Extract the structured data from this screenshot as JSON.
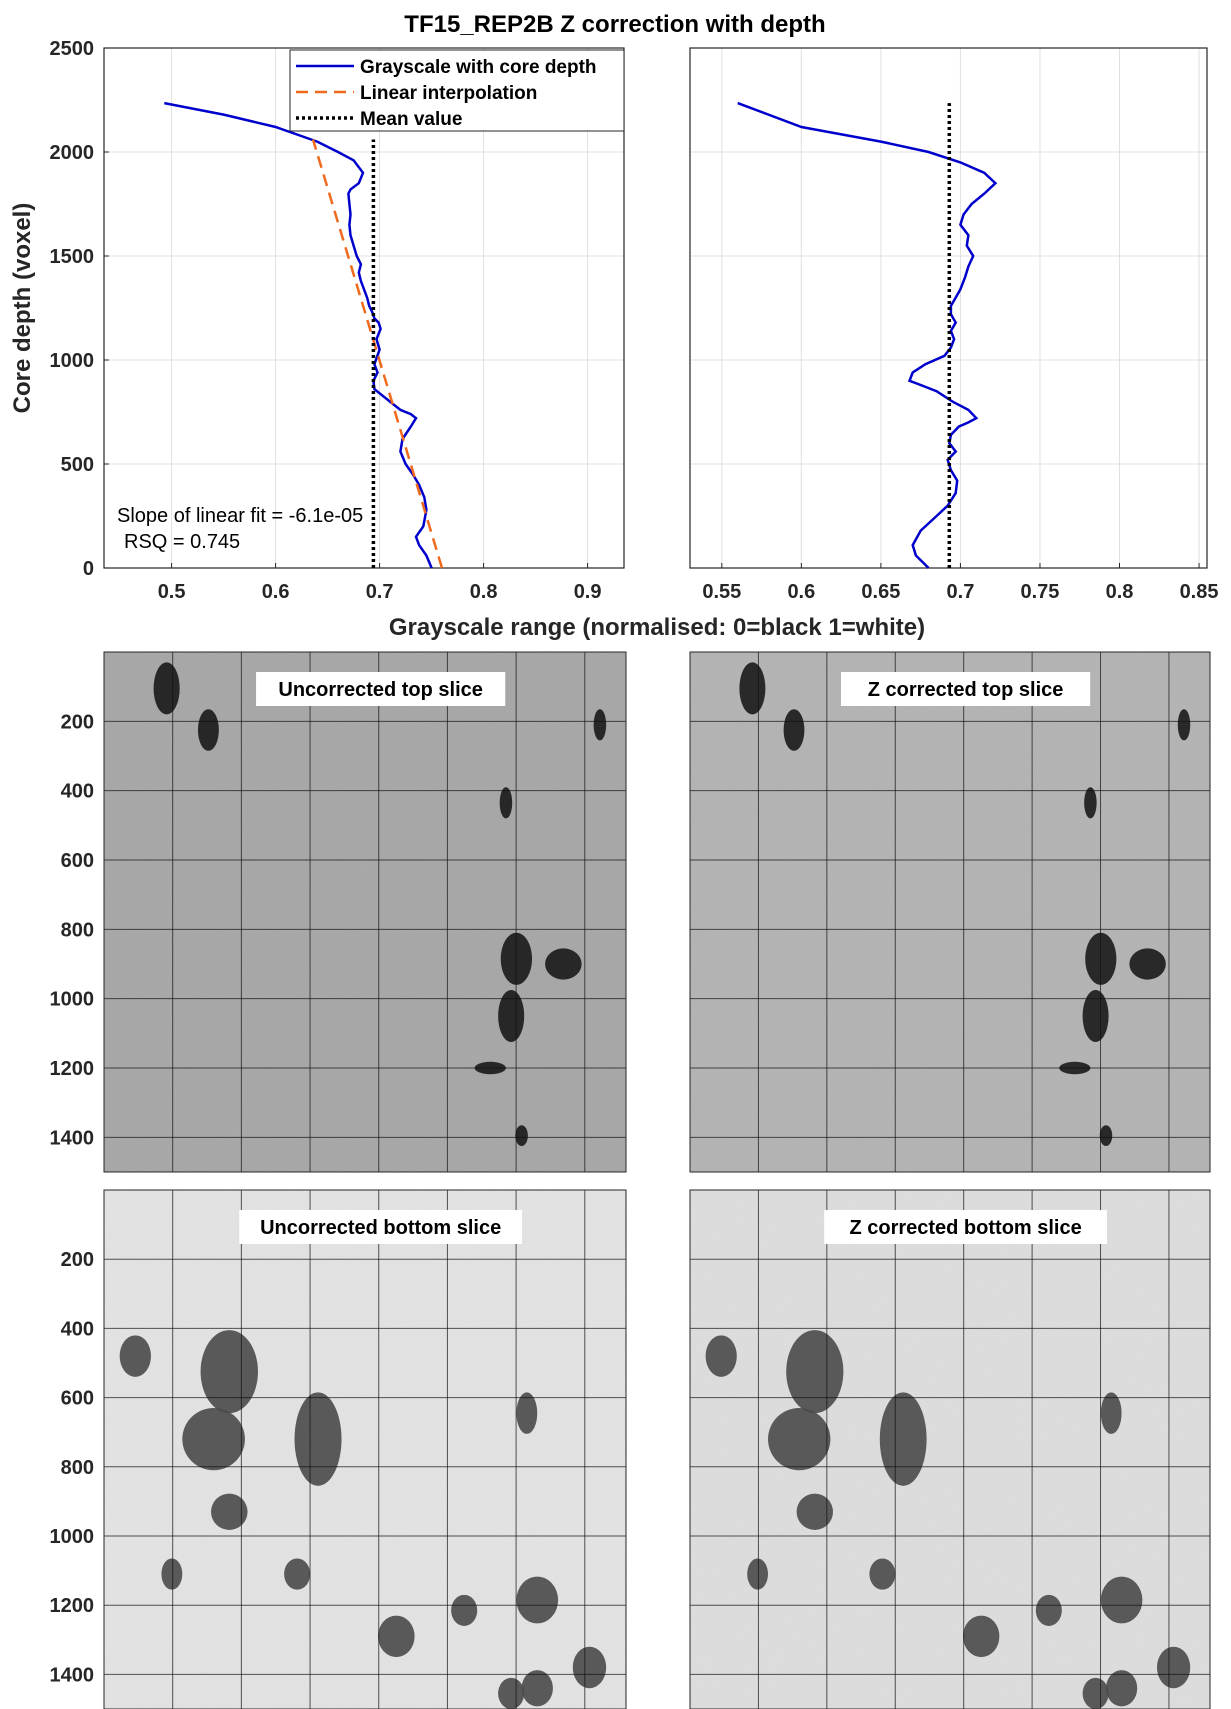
{
  "figure_title": "TF15_REP2B Z correction with depth",
  "shared_xlabel": "Grayscale range (normalised: 0=black 1=white)",
  "chart_data": [
    {
      "type": "line",
      "panel": "left",
      "ylabel": "Core depth (voxel)",
      "xlim": [
        0.435,
        0.935
      ],
      "ylim": [
        0,
        2500
      ],
      "xticks": [
        0.5,
        0.6,
        0.7,
        0.8,
        0.9
      ],
      "xtick_labels": [
        "0.5",
        "0.6",
        "0.7",
        "0.8",
        "0.9"
      ],
      "yticks": [
        0,
        500,
        1000,
        1500,
        2000,
        2500
      ],
      "ytick_labels": [
        "0",
        "500",
        "1000",
        "1500",
        "2000",
        "2500"
      ],
      "grid": true,
      "legend_position": "top-right",
      "series": [
        {
          "name": "Grayscale with core depth",
          "style": "solid",
          "color": "#0000cc",
          "x": [
            0.75,
            0.745,
            0.738,
            0.735,
            0.742,
            0.745,
            0.743,
            0.738,
            0.732,
            0.725,
            0.72,
            0.722,
            0.73,
            0.735,
            0.73,
            0.72,
            0.71,
            0.7,
            0.695,
            0.694,
            0.698,
            0.695,
            0.7,
            0.697,
            0.701,
            0.699,
            0.695,
            0.693,
            0.69,
            0.688,
            0.685,
            0.682,
            0.68,
            0.682,
            0.678,
            0.675,
            0.672,
            0.671,
            0.672,
            0.671,
            0.67,
            0.672,
            0.68,
            0.684,
            0.675,
            0.66,
            0.64,
            0.6,
            0.55,
            0.493
          ],
          "y": [
            0,
            60,
            110,
            150,
            200,
            280,
            340,
            400,
            450,
            500,
            560,
            620,
            680,
            720,
            740,
            760,
            800,
            840,
            860,
            900,
            940,
            980,
            1050,
            1100,
            1150,
            1180,
            1200,
            1230,
            1260,
            1300,
            1340,
            1380,
            1420,
            1460,
            1500,
            1550,
            1600,
            1650,
            1700,
            1750,
            1800,
            1820,
            1850,
            1900,
            1960,
            2000,
            2050,
            2120,
            2180,
            2235
          ]
        },
        {
          "name": "Linear interpolation",
          "style": "dashed",
          "color": "#f06a1e",
          "x": [
            0.76,
            0.636
          ],
          "y": [
            0,
            2060
          ]
        },
        {
          "name": "Mean value",
          "style": "dotted",
          "color": "#000000",
          "x": [
            0.694,
            0.694
          ],
          "y": [
            0,
            2060
          ]
        }
      ],
      "annotations": [
        "Slope of linear fit = -6.1e-05",
        "RSQ = 0.745"
      ]
    },
    {
      "type": "line",
      "panel": "right",
      "xlim": [
        0.53,
        0.855
      ],
      "ylim": [
        0,
        2500
      ],
      "xticks": [
        0.55,
        0.6,
        0.65,
        0.7,
        0.75,
        0.8,
        0.85
      ],
      "xtick_labels": [
        "0.55",
        "0.6",
        "0.65",
        "0.7",
        "0.75",
        "0.8",
        "0.85"
      ],
      "grid": true,
      "series": [
        {
          "style": "solid",
          "color": "#0000cc",
          "x": [
            0.68,
            0.672,
            0.67,
            0.675,
            0.685,
            0.692,
            0.697,
            0.698,
            0.694,
            0.692,
            0.697,
            0.693,
            0.694,
            0.699,
            0.705,
            0.71,
            0.705,
            0.695,
            0.685,
            0.675,
            0.668,
            0.67,
            0.678,
            0.69,
            0.694,
            0.696,
            0.694,
            0.697,
            0.694,
            0.694,
            0.697,
            0.7,
            0.703,
            0.705,
            0.708,
            0.704,
            0.705,
            0.7,
            0.702,
            0.707,
            0.715,
            0.722,
            0.715,
            0.7,
            0.68,
            0.65,
            0.6,
            0.56
          ],
          "y": [
            0,
            60,
            110,
            180,
            250,
            300,
            360,
            420,
            470,
            520,
            560,
            600,
            640,
            680,
            700,
            720,
            760,
            800,
            850,
            880,
            900,
            940,
            980,
            1020,
            1060,
            1100,
            1140,
            1180,
            1220,
            1260,
            1300,
            1340,
            1400,
            1450,
            1500,
            1550,
            1600,
            1650,
            1700,
            1750,
            1800,
            1850,
            1900,
            1950,
            2000,
            2050,
            2120,
            2235
          ]
        },
        {
          "style": "dotted",
          "color": "#000000",
          "x": [
            0.693,
            0.693
          ],
          "y": [
            0,
            2235
          ]
        }
      ]
    },
    {
      "type": "image",
      "panel": "top-left-image",
      "label": "Uncorrected top slice",
      "yticks": [
        200,
        400,
        600,
        800,
        1000,
        1200,
        1400
      ],
      "ylim": [
        0,
        1500
      ],
      "shade": "#a6a6a6"
    },
    {
      "type": "image",
      "panel": "top-right-image",
      "label": "Z corrected top slice",
      "yticks": [
        200,
        400,
        600,
        800,
        1000,
        1200,
        1400
      ],
      "ylim": [
        0,
        1500
      ],
      "shade": "#b3b3b3"
    },
    {
      "type": "image",
      "panel": "bottom-left-image",
      "label": "Uncorrected bottom slice",
      "yticks": [
        200,
        400,
        600,
        800,
        1000,
        1200,
        1400
      ],
      "ylim": [
        0,
        1500
      ],
      "shade": "#e4e4e4"
    },
    {
      "type": "image",
      "panel": "bottom-right-image",
      "label": "Z corrected bottom slice",
      "yticks": [
        200,
        400,
        600,
        800,
        1000,
        1200,
        1400
      ],
      "ylim": [
        0,
        1500
      ],
      "shade": "#dedede"
    }
  ]
}
